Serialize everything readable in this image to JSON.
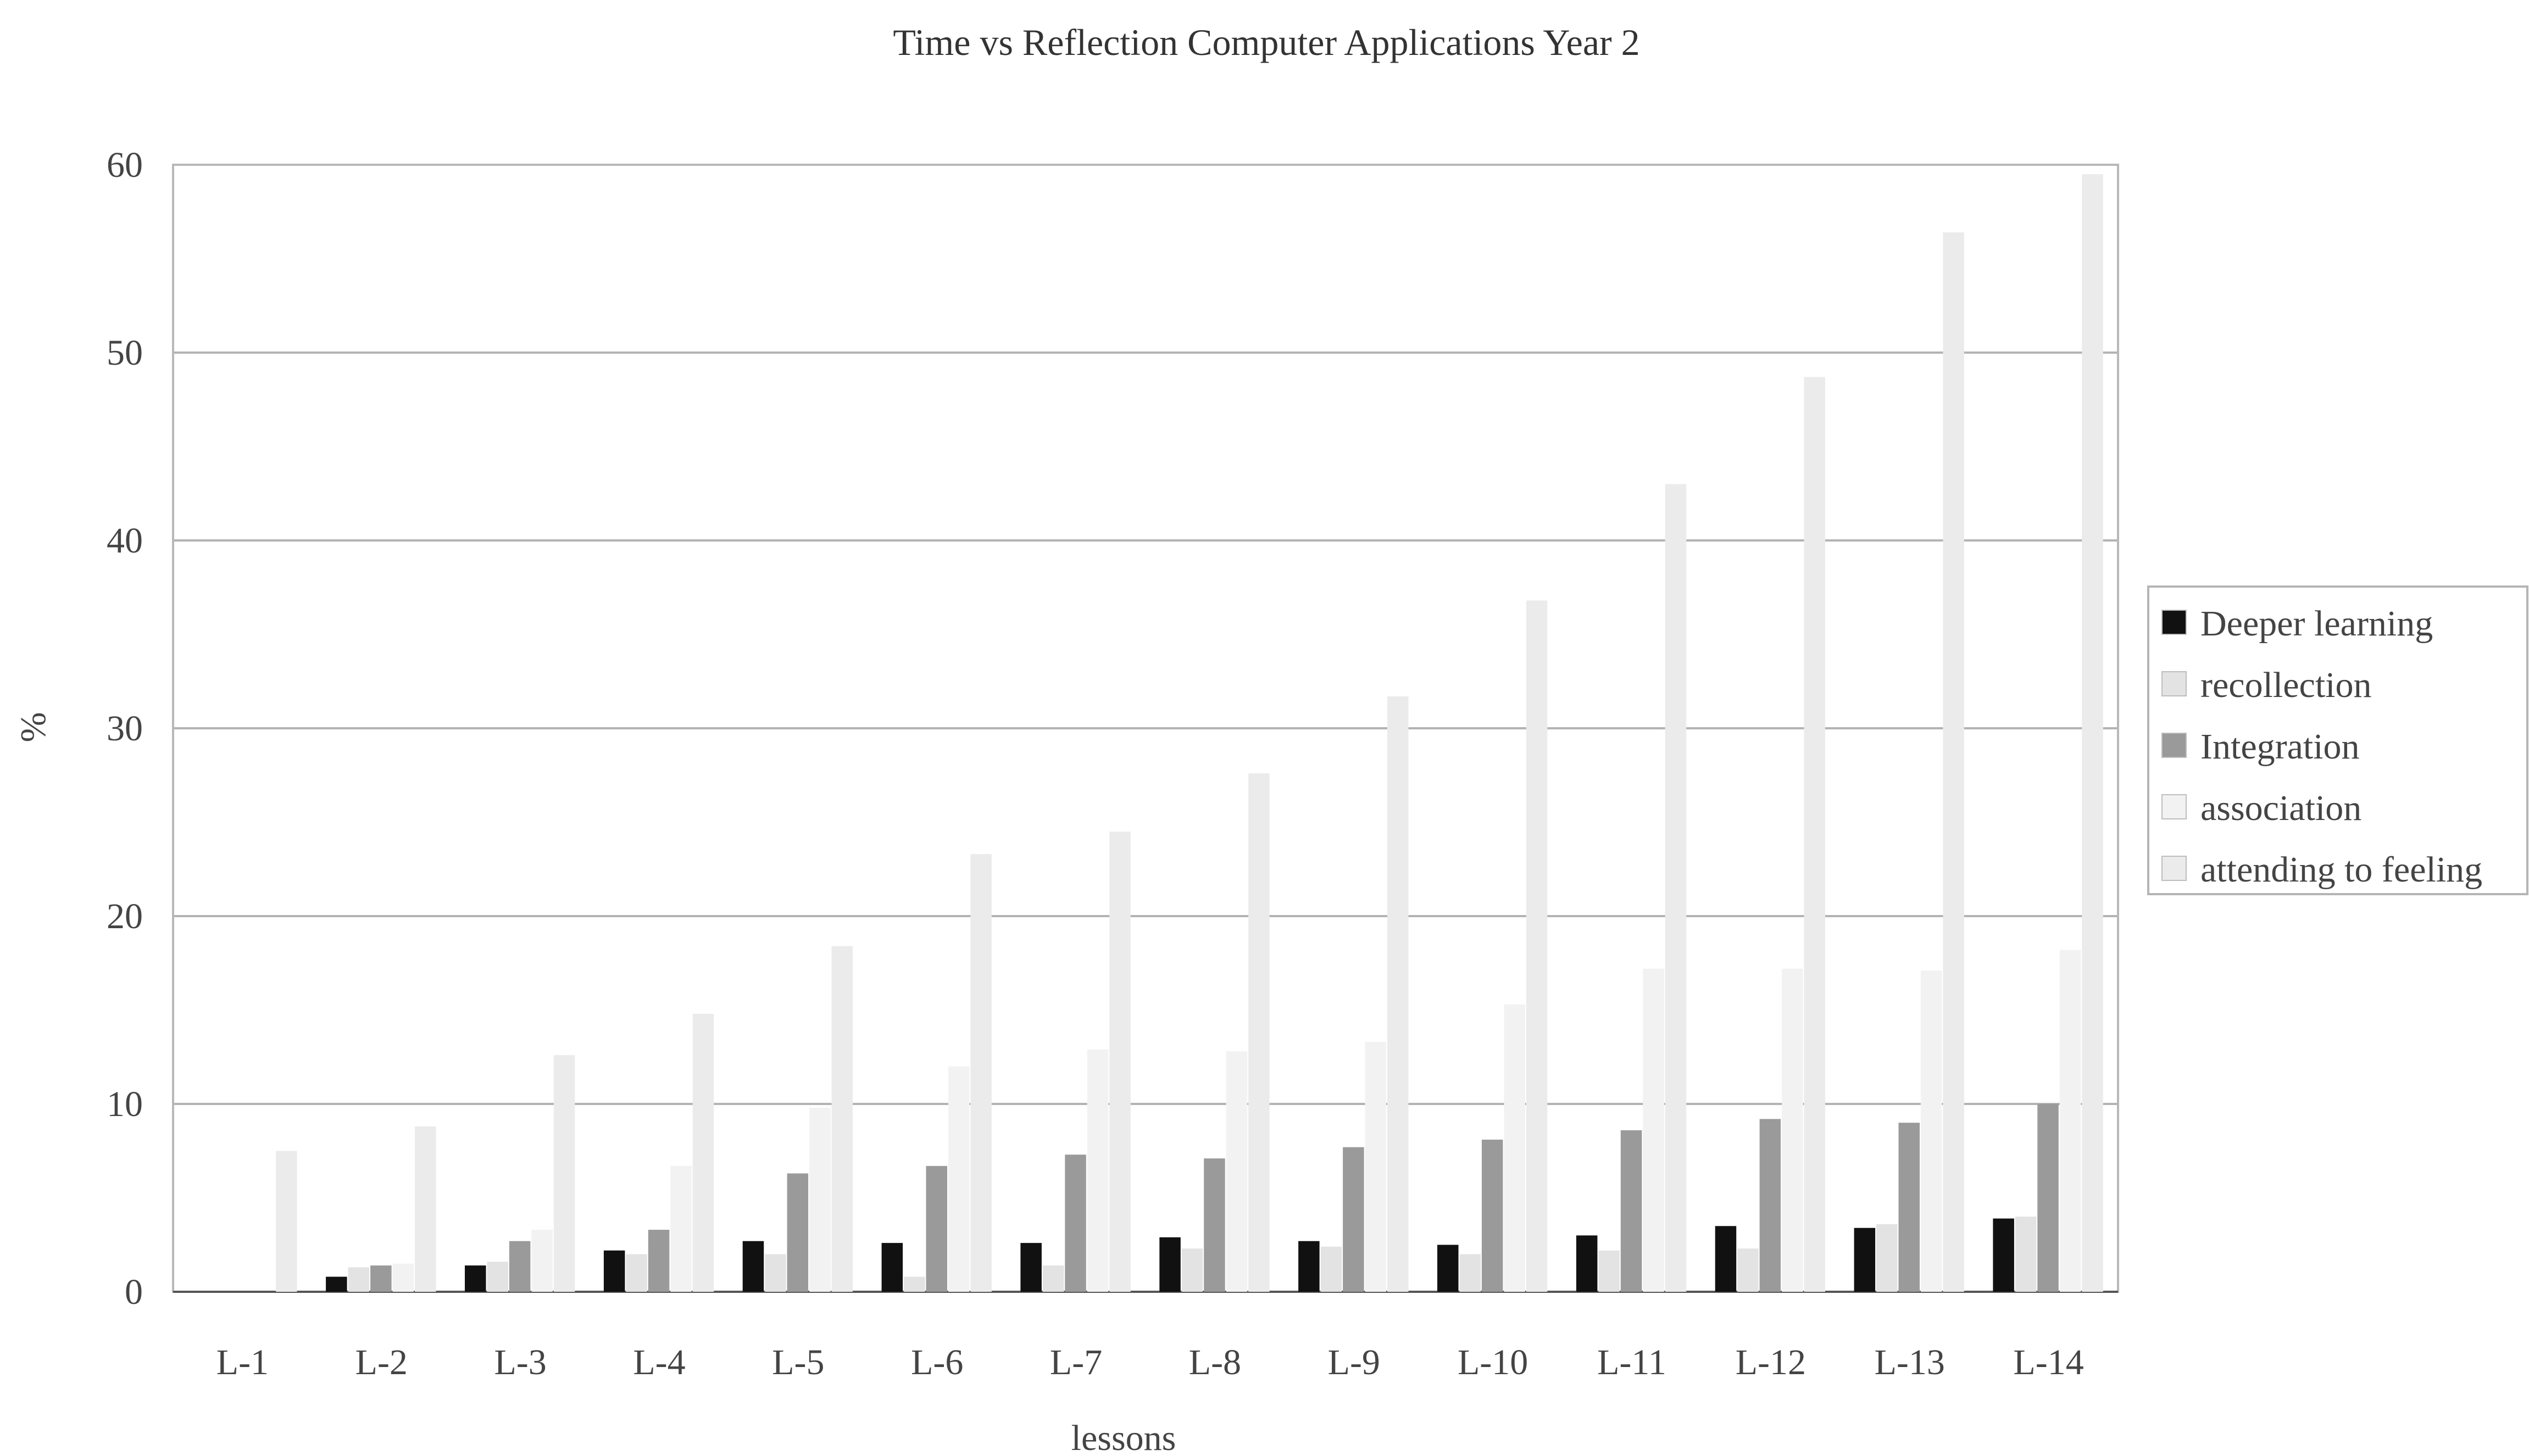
{
  "chart_data": {
    "type": "bar",
    "title": "Time vs Reflection Computer Applications Year 2",
    "xlabel": "lessons",
    "ylabel": "%",
    "ylim": [
      0,
      60
    ],
    "yticks": [
      0,
      10,
      20,
      30,
      40,
      50,
      60
    ],
    "grid": true,
    "legend_position": "right",
    "categories": [
      "L-1",
      "L-2",
      "L-3",
      "L-4",
      "L-5",
      "L-6",
      "L-7",
      "L-8",
      "L-9",
      "L-10",
      "L-11",
      "L-12",
      "L-13",
      "L-14"
    ],
    "series": [
      {
        "name": "Deeper learning",
        "color": "#111111",
        "values": [
          0,
          0.8,
          1.4,
          2.2,
          2.7,
          2.6,
          2.6,
          2.9,
          2.7,
          2.5,
          3.0,
          3.5,
          3.4,
          3.9
        ]
      },
      {
        "name": "recollection",
        "color": "#e3e3e3",
        "values": [
          0,
          1.3,
          1.6,
          2.0,
          2.0,
          0.8,
          1.4,
          2.3,
          2.4,
          2.0,
          2.2,
          2.3,
          3.6,
          4.0
        ]
      },
      {
        "name": "Integration",
        "color": "#9a9a9a",
        "values": [
          0,
          1.4,
          2.7,
          3.3,
          6.3,
          6.7,
          7.3,
          7.1,
          7.7,
          8.1,
          8.6,
          9.2,
          9.0,
          10.0
        ]
      },
      {
        "name": "association",
        "color": "#f2f2f2",
        "values": [
          0,
          1.5,
          3.3,
          6.7,
          9.8,
          12.0,
          12.9,
          12.8,
          13.3,
          15.3,
          17.2,
          17.2,
          17.1,
          18.2
        ]
      },
      {
        "name": "attending to feeling",
        "color": "#ebebeb",
        "values": [
          7.5,
          8.8,
          12.6,
          14.8,
          18.4,
          23.3,
          24.5,
          27.6,
          31.7,
          36.8,
          43.0,
          48.7,
          56.4,
          59.5
        ]
      }
    ]
  }
}
